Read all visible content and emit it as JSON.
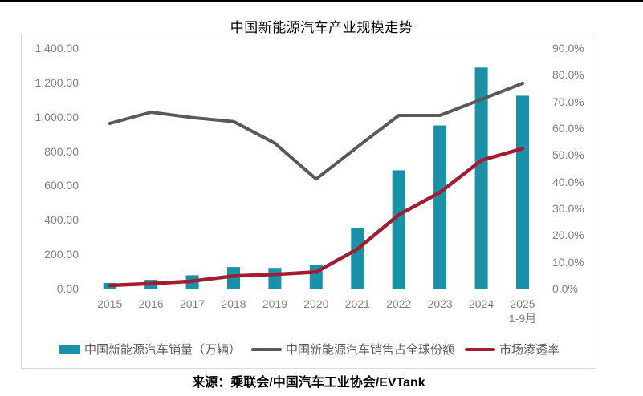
{
  "title": "中国新能源汽车产业规模走势",
  "source_note": "来源：乘联会/中国汽车工业协会/EVTank",
  "colors": {
    "bar": "#1792a8",
    "share_line": "#595959",
    "penetration_line": "#a31c32",
    "axis_text": "#808080",
    "legend_text": "#595959",
    "chart_border": "#d9d9d9",
    "axis_line": "#d9d9d9",
    "top_rule": "#000000"
  },
  "chart_data": {
    "type": "combo-bar-line",
    "title": "中国新能源汽车产业规模走势",
    "categories": [
      "2015",
      "2016",
      "2017",
      "2018",
      "2019",
      "2020",
      "2021",
      "2022",
      "2023",
      "2024",
      "2025"
    ],
    "last_category_note": "1-9月",
    "series": [
      {
        "name": "中国新能源汽车销量（万辆）",
        "type": "bar",
        "axis": "left",
        "values": [
          33.1,
          50.7,
          77.7,
          125.6,
          120.6,
          136.7,
          352.1,
          688.7,
          949.5,
          1286.6,
          1122.8
        ]
      },
      {
        "name": "中国新能源汽车销售占全球份额",
        "type": "line",
        "axis": "right",
        "values": [
          61.8,
          66.0,
          64.0,
          62.5,
          54.4,
          41.0,
          53.0,
          64.8,
          64.8,
          70.8,
          76.8
        ]
      },
      {
        "name": "市场渗透率",
        "type": "line",
        "axis": "right",
        "values": [
          1.2,
          1.9,
          2.8,
          4.7,
          5.3,
          6.2,
          14.8,
          27.6,
          36.0,
          48.0,
          52.4
        ]
      }
    ],
    "left_axis": {
      "min": 0,
      "max": 1400,
      "step": 200,
      "tick_labels": [
        "0.00",
        "200.00",
        "400.00",
        "600.00",
        "800.00",
        "1,000.00",
        "1,200.00",
        "1,400.00"
      ]
    },
    "right_axis": {
      "min": 0,
      "max": 90,
      "step": 10,
      "tick_labels": [
        "0.0%",
        "10.0%",
        "20.0%",
        "30.0%",
        "40.0%",
        "50.0%",
        "60.0%",
        "70.0%",
        "80.0%",
        "90.0%"
      ]
    },
    "grid": false,
    "legend_position": "bottom"
  }
}
